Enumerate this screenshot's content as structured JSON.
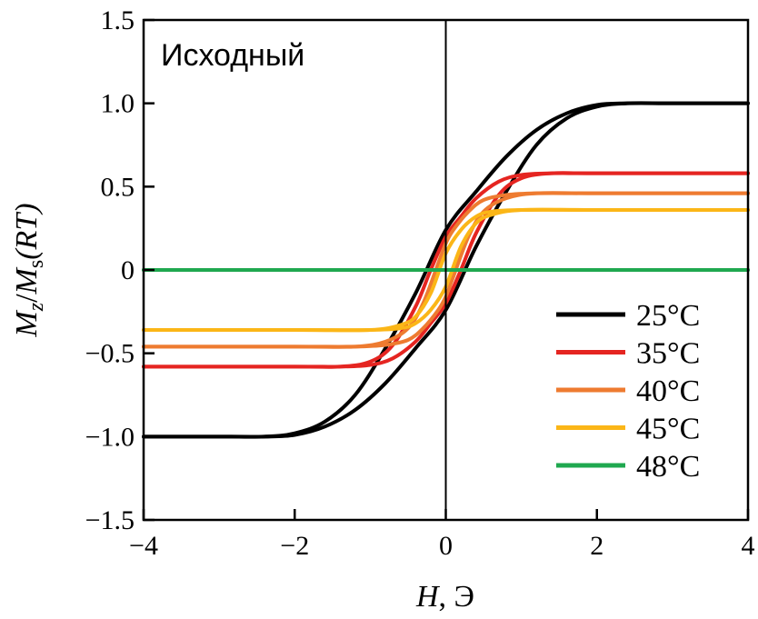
{
  "chart_data": {
    "type": "line",
    "annotation": "Исходный",
    "xlabel": {
      "var": "H",
      "unit": ", Э"
    },
    "ylabel": {
      "num": "M",
      "num_sub": "z",
      "den": "M",
      "den_sub": "s",
      "arg": "(RT)"
    },
    "xlim": [
      -4,
      4
    ],
    "ylim": [
      -1.5,
      1.5
    ],
    "x_ticks": [
      -4,
      -2,
      0,
      2,
      4
    ],
    "x_tick_labels": [
      "−4",
      "−2",
      "0",
      "2",
      "4"
    ],
    "y_ticks": [
      -1.5,
      -1.0,
      -0.5,
      0,
      0.5,
      1.0,
      1.5
    ],
    "y_tick_labels": [
      "−1.5",
      "−1.0",
      "−0.5",
      "0",
      "0.5",
      "1.0",
      "1.5"
    ],
    "grid": false,
    "legend_position": "bottom-right",
    "series": [
      {
        "name": "25°C",
        "color": "#000000",
        "x": [
          -4,
          -3.0,
          -2.4,
          -2.0,
          -1.6,
          -1.2,
          -0.8,
          -0.4,
          0,
          0.4,
          0.8,
          1.2,
          1.6,
          2.0,
          2.4,
          3.0,
          4
        ],
        "branch_up": [
          -1.0,
          -1.0,
          -1.0,
          -0.99,
          -0.94,
          -0.84,
          -0.68,
          -0.47,
          -0.24,
          0.14,
          0.47,
          0.75,
          0.91,
          0.98,
          1.0,
          1.0,
          1.0
        ],
        "branch_down": [
          -1.0,
          -1.0,
          -1.0,
          -0.98,
          -0.91,
          -0.75,
          -0.47,
          -0.14,
          0.24,
          0.47,
          0.68,
          0.84,
          0.94,
          0.99,
          1.0,
          1.0,
          1.0
        ]
      },
      {
        "name": "35°C",
        "color": "#e52521",
        "x": [
          -4,
          -2.0,
          -1.4,
          -1.0,
          -0.7,
          -0.4,
          -0.2,
          0,
          0.2,
          0.4,
          0.7,
          1.0,
          1.4,
          2.0,
          4
        ],
        "branch_up": [
          -0.58,
          -0.58,
          -0.58,
          -0.57,
          -0.53,
          -0.43,
          -0.32,
          -0.2,
          0.0,
          0.22,
          0.45,
          0.55,
          0.58,
          0.58,
          0.58
        ],
        "branch_down": [
          -0.58,
          -0.58,
          -0.58,
          -0.55,
          -0.45,
          -0.22,
          0.0,
          0.2,
          0.32,
          0.43,
          0.53,
          0.57,
          0.58,
          0.58,
          0.58
        ]
      },
      {
        "name": "40°C",
        "color": "#ee7b30",
        "x": [
          -4,
          -2.0,
          -1.2,
          -0.8,
          -0.5,
          -0.3,
          -0.1,
          0,
          0.1,
          0.3,
          0.5,
          0.8,
          1.2,
          2.0,
          4
        ],
        "branch_up": [
          -0.46,
          -0.46,
          -0.46,
          -0.45,
          -0.42,
          -0.35,
          -0.24,
          -0.16,
          -0.04,
          0.2,
          0.35,
          0.43,
          0.46,
          0.46,
          0.46
        ],
        "branch_down": [
          -0.46,
          -0.46,
          -0.46,
          -0.43,
          -0.35,
          -0.2,
          0.04,
          0.16,
          0.24,
          0.35,
          0.42,
          0.45,
          0.46,
          0.46,
          0.46
        ]
      },
      {
        "name": "45°C",
        "color": "#fbb617",
        "x": [
          -4,
          -2.0,
          -1.0,
          -0.6,
          -0.4,
          -0.2,
          0,
          0.2,
          0.4,
          0.6,
          1.0,
          2.0,
          4
        ],
        "branch_up": [
          -0.36,
          -0.36,
          -0.36,
          -0.35,
          -0.32,
          -0.24,
          -0.1,
          0.14,
          0.28,
          0.33,
          0.36,
          0.36,
          0.36
        ],
        "branch_down": [
          -0.36,
          -0.36,
          -0.36,
          -0.33,
          -0.28,
          -0.14,
          0.1,
          0.24,
          0.32,
          0.35,
          0.36,
          0.36,
          0.36
        ]
      },
      {
        "name": "48°C",
        "color": "#1fa84f",
        "x": [
          -4,
          4
        ],
        "branch_up": [
          0,
          0
        ],
        "branch_down": [
          0,
          0
        ]
      }
    ]
  }
}
